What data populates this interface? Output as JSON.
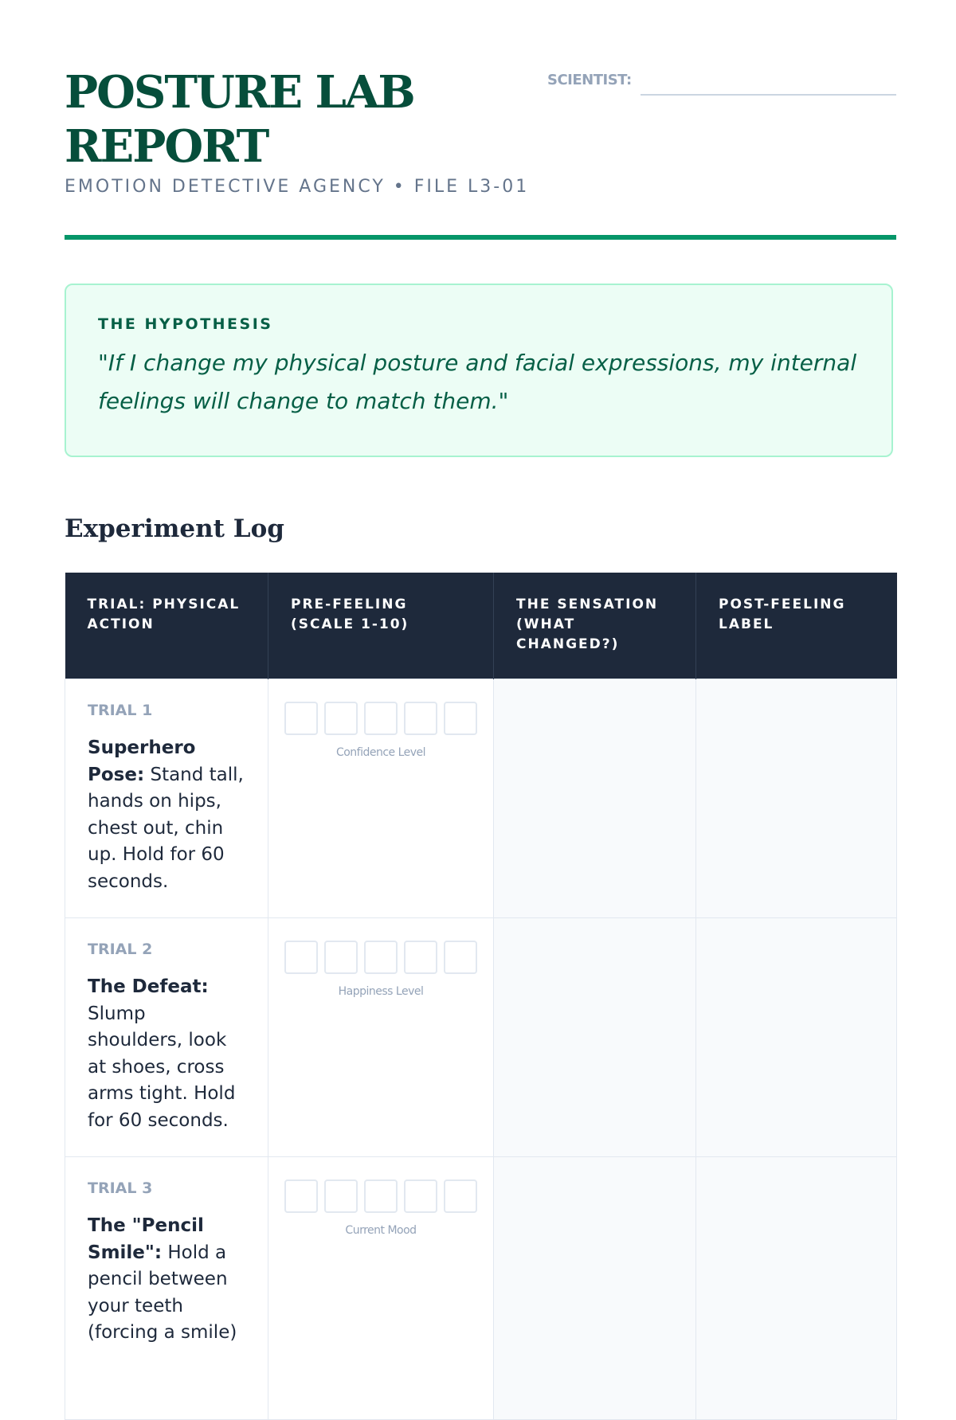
{
  "header": {
    "title": "POSTURE LAB REPORT",
    "subtitle": "EMOTION DETECTIVE AGENCY • FILE L3-01",
    "scientist_label": "SCIENTIST:",
    "scientist_value": ""
  },
  "colors": {
    "accent": "#059669",
    "title": "#064e3b",
    "table_header": "#1e293b",
    "hypothesis_bg": "#ecfdf5"
  },
  "hypothesis": {
    "label": "THE HYPOTHESIS",
    "text": "\"If I change my physical posture and facial expressions, my internal feelings will change to match them.\""
  },
  "log": {
    "title": "Experiment Log",
    "columns": [
      "TRIAL: PHYSICAL ACTION",
      "PRE-FEELING (SCALE 1-10)",
      "THE SENSATION (WHAT CHANGED?)",
      "POST-FEELING LABEL"
    ],
    "rows": [
      {
        "trial": "TRIAL 1",
        "action_title": "Superhero Pose:",
        "action_text": " Stand tall, hands on hips, chest out, chin up. Hold for 60 seconds.",
        "scale_label": "Confidence Level"
      },
      {
        "trial": "TRIAL 2",
        "action_title": "The Defeat:",
        "action_text": " Slump shoulders, look at shoes, cross arms tight. Hold for 60 seconds.",
        "scale_label": "Happiness Level"
      },
      {
        "trial": "TRIAL 3",
        "action_title": "The \"Pencil Smile\":",
        "action_text": " Hold a pencil between your teeth (forcing a smile)",
        "scale_label": "Current Mood"
      }
    ]
  }
}
